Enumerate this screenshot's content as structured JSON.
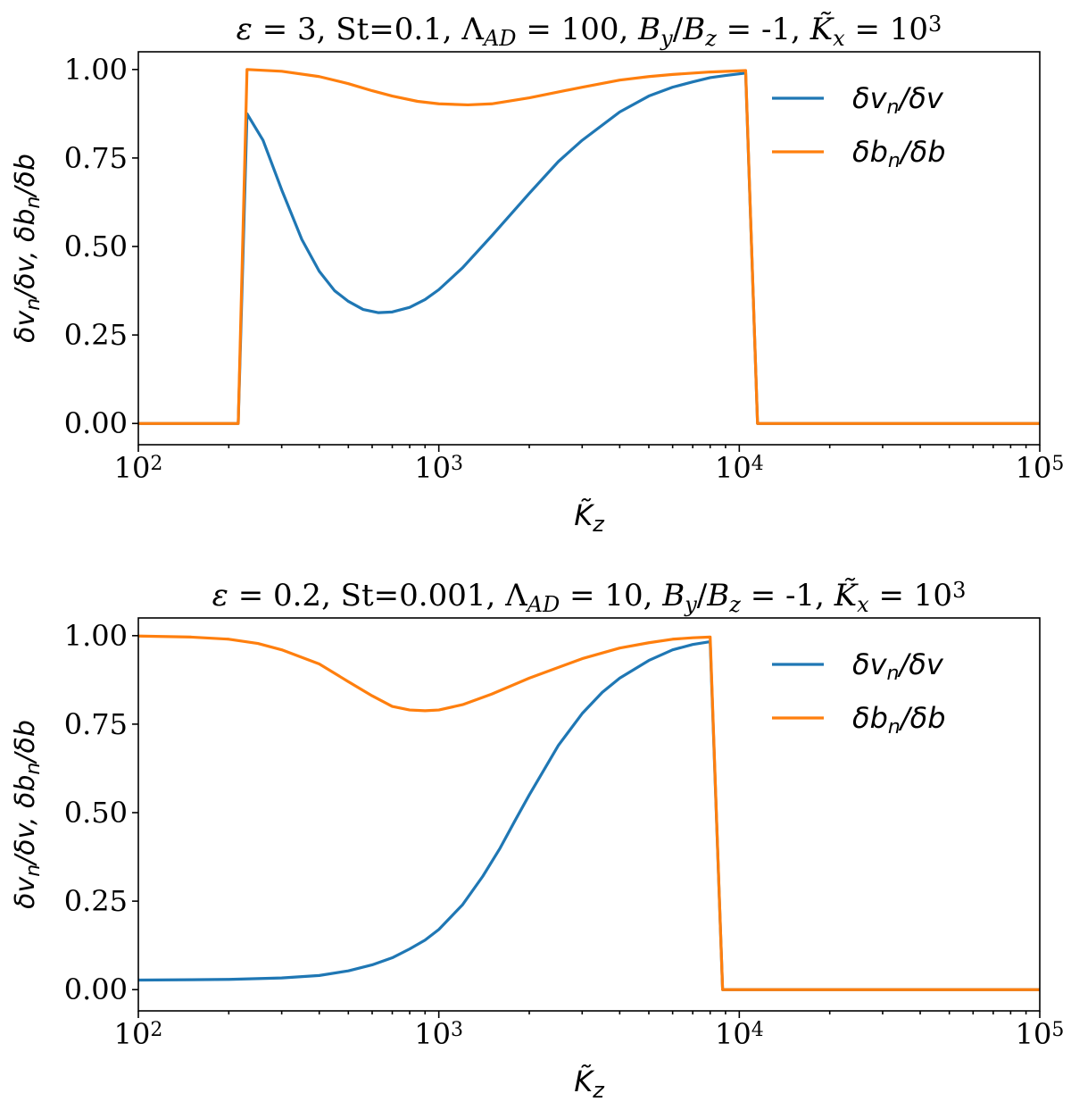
{
  "colors": {
    "series_1": "#1f77b4",
    "series_2": "#ff7f0e"
  },
  "chart_data": [
    {
      "type": "line",
      "title_parts": [
        {
          "text": "ε",
          "italic": true
        },
        {
          "text": " = 3, St=0.1, ",
          "italic": false
        },
        {
          "text": "Λ",
          "italic": false
        },
        {
          "text": "AD",
          "italic": true,
          "sub": true
        },
        {
          "text": " = 100, ",
          "italic": false
        },
        {
          "text": "B",
          "italic": true
        },
        {
          "text": "y",
          "italic": true,
          "sub": true
        },
        {
          "text": "/",
          "italic": false
        },
        {
          "text": "B",
          "italic": true
        },
        {
          "text": "z",
          "italic": true,
          "sub": true
        },
        {
          "text": " = -1, ",
          "italic": false
        },
        {
          "text": "K̃",
          "italic": true
        },
        {
          "text": "x",
          "italic": true,
          "sub": true
        },
        {
          "text": " = 10",
          "italic": false
        },
        {
          "text": "3",
          "italic": false,
          "sup": true
        }
      ],
      "xlabel": "K̃z",
      "ylabel": "δvn/δv, δbn/δb",
      "xscale": "log",
      "xlim": [
        100,
        100000
      ],
      "ylim": [
        -0.06,
        1.05
      ],
      "xticks": [
        {
          "value": 100,
          "base": "10",
          "exp": "2"
        },
        {
          "value": 1000,
          "base": "10",
          "exp": "3"
        },
        {
          "value": 10000,
          "base": "10",
          "exp": "4"
        },
        {
          "value": 100000,
          "base": "10",
          "exp": "5"
        }
      ],
      "yticks": [
        {
          "value": 0,
          "label": "0.00"
        },
        {
          "value": 0.25,
          "label": "0.25"
        },
        {
          "value": 0.5,
          "label": "0.50"
        },
        {
          "value": 0.75,
          "label": "0.75"
        },
        {
          "value": 1,
          "label": "1.00"
        }
      ],
      "legend_position": "upper-right",
      "series": [
        {
          "name": "δvn/δv",
          "color": "#1f77b4",
          "points": [
            [
              100,
              0
            ],
            [
              215,
              0
            ],
            [
              230,
              0.875
            ],
            [
              260,
              0.8
            ],
            [
              300,
              0.66
            ],
            [
              350,
              0.52
            ],
            [
              400,
              0.43
            ],
            [
              450,
              0.375
            ],
            [
              500,
              0.345
            ],
            [
              560,
              0.322
            ],
            [
              630,
              0.313
            ],
            [
              700,
              0.315
            ],
            [
              800,
              0.328
            ],
            [
              900,
              0.35
            ],
            [
              1000,
              0.378
            ],
            [
              1200,
              0.44
            ],
            [
              1500,
              0.53
            ],
            [
              2000,
              0.65
            ],
            [
              2500,
              0.74
            ],
            [
              3000,
              0.8
            ],
            [
              4000,
              0.88
            ],
            [
              5000,
              0.925
            ],
            [
              6000,
              0.95
            ],
            [
              7000,
              0.965
            ],
            [
              8000,
              0.977
            ],
            [
              9000,
              0.983
            ],
            [
              10500,
              0.99
            ],
            [
              11500,
              0
            ],
            [
              100000,
              0
            ]
          ]
        },
        {
          "name": "δbn/δb",
          "color": "#ff7f0e",
          "points": [
            [
              100,
              0
            ],
            [
              215,
              0
            ],
            [
              230,
              1.0
            ],
            [
              300,
              0.995
            ],
            [
              400,
              0.98
            ],
            [
              500,
              0.96
            ],
            [
              600,
              0.94
            ],
            [
              700,
              0.925
            ],
            [
              850,
              0.91
            ],
            [
              1000,
              0.903
            ],
            [
              1250,
              0.9
            ],
            [
              1500,
              0.903
            ],
            [
              2000,
              0.92
            ],
            [
              3000,
              0.95
            ],
            [
              4000,
              0.97
            ],
            [
              5000,
              0.98
            ],
            [
              6000,
              0.986
            ],
            [
              8000,
              0.993
            ],
            [
              10500,
              0.997
            ],
            [
              11500,
              0
            ],
            [
              100000,
              0
            ]
          ]
        }
      ]
    },
    {
      "type": "line",
      "title_parts": [
        {
          "text": "ε",
          "italic": true
        },
        {
          "text": " = 0.2, St=0.001, ",
          "italic": false
        },
        {
          "text": "Λ",
          "italic": false
        },
        {
          "text": "AD",
          "italic": true,
          "sub": true
        },
        {
          "text": " = 10, ",
          "italic": false
        },
        {
          "text": "B",
          "italic": true
        },
        {
          "text": "y",
          "italic": true,
          "sub": true
        },
        {
          "text": "/",
          "italic": false
        },
        {
          "text": "B",
          "italic": true
        },
        {
          "text": "z",
          "italic": true,
          "sub": true
        },
        {
          "text": " = -1, ",
          "italic": false
        },
        {
          "text": "K̃",
          "italic": true
        },
        {
          "text": "x",
          "italic": true,
          "sub": true
        },
        {
          "text": " = 10",
          "italic": false
        },
        {
          "text": "3",
          "italic": false,
          "sup": true
        }
      ],
      "xlabel": "K̃z",
      "ylabel": "δvn/δv, δbn/δb",
      "xscale": "log",
      "xlim": [
        100,
        100000
      ],
      "ylim": [
        -0.06,
        1.05
      ],
      "xticks": [
        {
          "value": 100,
          "base": "10",
          "exp": "2"
        },
        {
          "value": 1000,
          "base": "10",
          "exp": "3"
        },
        {
          "value": 10000,
          "base": "10",
          "exp": "4"
        },
        {
          "value": 100000,
          "base": "10",
          "exp": "5"
        }
      ],
      "yticks": [
        {
          "value": 0,
          "label": "0.00"
        },
        {
          "value": 0.25,
          "label": "0.25"
        },
        {
          "value": 0.5,
          "label": "0.50"
        },
        {
          "value": 0.75,
          "label": "0.75"
        },
        {
          "value": 1,
          "label": "1.00"
        }
      ],
      "legend_position": "upper-right",
      "series": [
        {
          "name": "δvn/δv",
          "color": "#1f77b4",
          "points": [
            [
              100,
              0.027
            ],
            [
              150,
              0.028
            ],
            [
              200,
              0.029
            ],
            [
              300,
              0.033
            ],
            [
              400,
              0.04
            ],
            [
              500,
              0.053
            ],
            [
              600,
              0.07
            ],
            [
              700,
              0.09
            ],
            [
              800,
              0.115
            ],
            [
              900,
              0.14
            ],
            [
              1000,
              0.17
            ],
            [
              1200,
              0.24
            ],
            [
              1400,
              0.32
            ],
            [
              1600,
              0.4
            ],
            [
              1800,
              0.48
            ],
            [
              2000,
              0.55
            ],
            [
              2500,
              0.69
            ],
            [
              3000,
              0.78
            ],
            [
              3500,
              0.84
            ],
            [
              4000,
              0.88
            ],
            [
              5000,
              0.93
            ],
            [
              6000,
              0.96
            ],
            [
              7000,
              0.975
            ],
            [
              8000,
              0.983
            ],
            [
              8800,
              0
            ],
            [
              100000,
              0
            ]
          ]
        },
        {
          "name": "δbn/δb",
          "color": "#ff7f0e",
          "points": [
            [
              100,
              0.999
            ],
            [
              150,
              0.996
            ],
            [
              200,
              0.99
            ],
            [
              250,
              0.978
            ],
            [
              300,
              0.96
            ],
            [
              400,
              0.92
            ],
            [
              500,
              0.87
            ],
            [
              600,
              0.83
            ],
            [
              700,
              0.8
            ],
            [
              800,
              0.79
            ],
            [
              900,
              0.788
            ],
            [
              1000,
              0.79
            ],
            [
              1200,
              0.805
            ],
            [
              1500,
              0.835
            ],
            [
              2000,
              0.88
            ],
            [
              3000,
              0.935
            ],
            [
              4000,
              0.965
            ],
            [
              5000,
              0.98
            ],
            [
              6000,
              0.99
            ],
            [
              7000,
              0.994
            ],
            [
              8000,
              0.996
            ],
            [
              8800,
              0
            ],
            [
              100000,
              0
            ]
          ]
        }
      ]
    }
  ]
}
